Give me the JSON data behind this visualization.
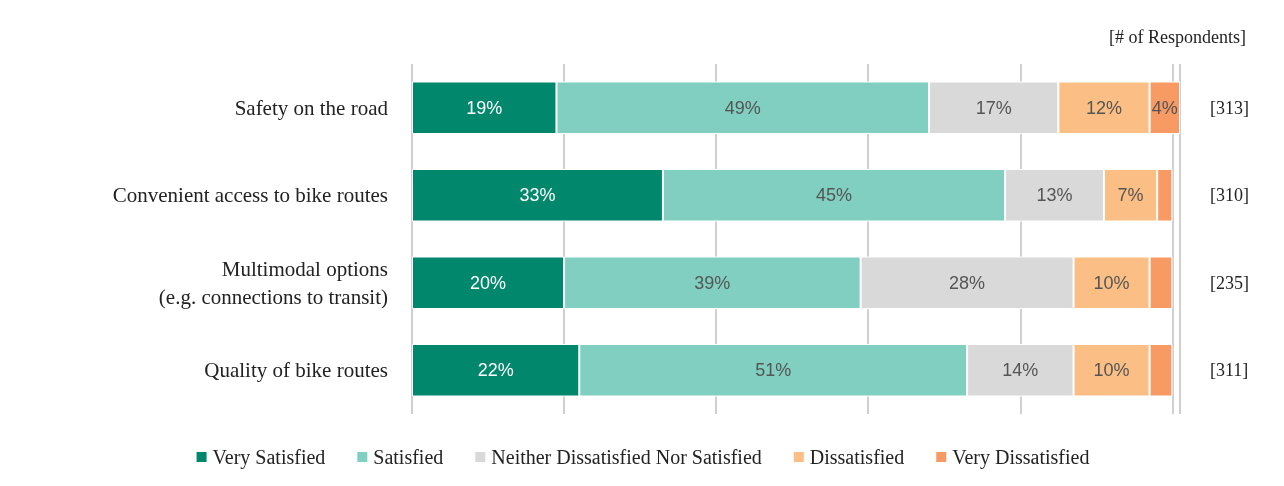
{
  "chart_data": {
    "type": "bar",
    "orientation": "horizontal",
    "stacked": true,
    "categories": [
      "Safety on the road",
      "Convenient access to bike routes",
      "Multimodal options\n(e.g. connections to transit)",
      "Quality of bike routes"
    ],
    "series": [
      {
        "name": "Very Satisfied",
        "color": "#00876c",
        "values": [
          19,
          33,
          20,
          22
        ],
        "value_labels": [
          "19%",
          "33%",
          "20%",
          "22%"
        ]
      },
      {
        "name": "Satisfied",
        "color": "#80cfc0",
        "values": [
          49,
          45,
          39,
          51
        ],
        "value_labels": [
          "49%",
          "45%",
          "39%",
          "51%"
        ]
      },
      {
        "name": "Neither Dissatisfied Nor Satisfied",
        "color": "#d9d9d9",
        "values": [
          17,
          13,
          28,
          14
        ],
        "value_labels": [
          "17%",
          "13%",
          "28%",
          "14%"
        ]
      },
      {
        "name": "Dissatisfied",
        "color": "#fbbf85",
        "values": [
          12,
          7,
          10,
          10
        ],
        "value_labels": [
          "12%",
          "7%",
          "10%",
          "10%"
        ]
      },
      {
        "name": "Very Dissatisfied",
        "color": "#f79a63",
        "values": [
          4,
          2,
          3,
          3
        ],
        "value_labels": [
          "4%",
          null,
          null,
          null
        ]
      }
    ],
    "xlim": [
      0,
      101
    ],
    "tick_labels": "y",
    "grid": "x",
    "legend": "bottom",
    "y2label": "[# of Respondents]",
    "annotations": [
      "[313]",
      "[310]",
      "[235]",
      "[311]"
    ]
  }
}
